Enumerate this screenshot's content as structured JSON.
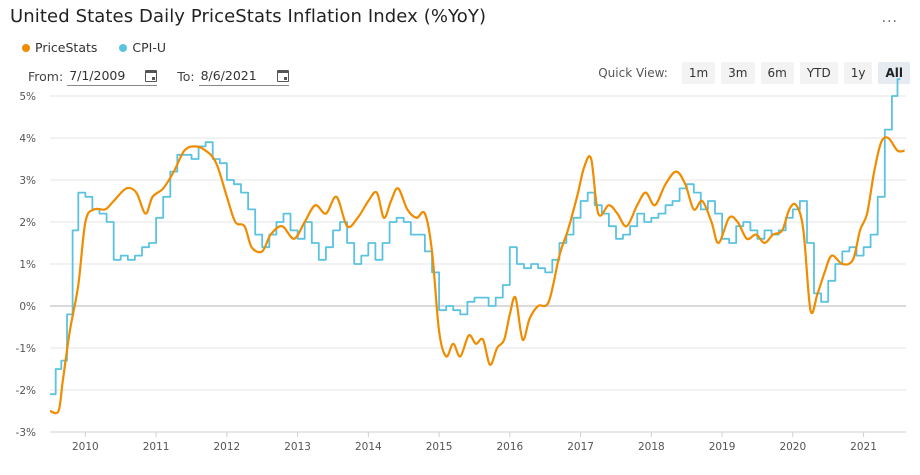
{
  "header": {
    "title": "United States Daily PriceStats Inflation Index (%YoY)",
    "menu_label": "..."
  },
  "legend": [
    {
      "name": "PriceStats",
      "color": "#f08c00"
    },
    {
      "name": "CPI-U",
      "color": "#5bc3e0"
    }
  ],
  "range": {
    "from_label": "From:",
    "from_value": "7/1/2009",
    "to_label": "To:",
    "to_value": "8/6/2021"
  },
  "quick_view": {
    "label": "Quick View:",
    "buttons": [
      "1m",
      "3m",
      "6m",
      "YTD",
      "1y",
      "All"
    ],
    "active": "All"
  },
  "chart_data": {
    "type": "line",
    "title": "United States Daily PriceStats Inflation Index (%YoY)",
    "xlabel": "",
    "ylabel": "",
    "xlim": [
      2009.5,
      2021.6
    ],
    "ylim": [
      -3,
      5
    ],
    "x_ticks": [
      "2010",
      "2011",
      "2012",
      "2013",
      "2014",
      "2015",
      "2016",
      "2017",
      "2018",
      "2019",
      "2020",
      "2021"
    ],
    "y_ticks": [
      "-3%",
      "-2%",
      "-1%",
      "0%",
      "1%",
      "2%",
      "3%",
      "4%",
      "5%"
    ],
    "grid": true,
    "legend_position": "top-left",
    "series": [
      {
        "name": "PriceStats",
        "color": "#f08c00",
        "style": "smooth",
        "points": [
          [
            2009.5,
            -2.5
          ],
          [
            2009.62,
            -2.5
          ],
          [
            2009.68,
            -1.8
          ],
          [
            2009.78,
            -0.6
          ],
          [
            2009.9,
            0.5
          ],
          [
            2010.0,
            2.0
          ],
          [
            2010.12,
            2.3
          ],
          [
            2010.28,
            2.3
          ],
          [
            2010.4,
            2.5
          ],
          [
            2010.58,
            2.8
          ],
          [
            2010.72,
            2.7
          ],
          [
            2010.85,
            2.2
          ],
          [
            2010.95,
            2.6
          ],
          [
            2011.1,
            2.8
          ],
          [
            2011.25,
            3.2
          ],
          [
            2011.4,
            3.7
          ],
          [
            2011.55,
            3.8
          ],
          [
            2011.7,
            3.7
          ],
          [
            2011.85,
            3.4
          ],
          [
            2012.0,
            2.6
          ],
          [
            2012.12,
            2.0
          ],
          [
            2012.25,
            1.9
          ],
          [
            2012.35,
            1.4
          ],
          [
            2012.5,
            1.3
          ],
          [
            2012.62,
            1.7
          ],
          [
            2012.78,
            1.9
          ],
          [
            2012.95,
            1.6
          ],
          [
            2013.1,
            2.0
          ],
          [
            2013.25,
            2.4
          ],
          [
            2013.4,
            2.2
          ],
          [
            2013.55,
            2.6
          ],
          [
            2013.7,
            1.9
          ],
          [
            2013.85,
            2.1
          ],
          [
            2014.0,
            2.5
          ],
          [
            2014.12,
            2.7
          ],
          [
            2014.22,
            2.1
          ],
          [
            2014.32,
            2.5
          ],
          [
            2014.42,
            2.8
          ],
          [
            2014.55,
            2.3
          ],
          [
            2014.68,
            2.1
          ],
          [
            2014.8,
            2.2
          ],
          [
            2014.9,
            1.3
          ],
          [
            2015.0,
            -0.6
          ],
          [
            2015.1,
            -1.2
          ],
          [
            2015.2,
            -0.9
          ],
          [
            2015.3,
            -1.2
          ],
          [
            2015.42,
            -0.7
          ],
          [
            2015.52,
            -0.9
          ],
          [
            2015.62,
            -0.8
          ],
          [
            2015.72,
            -1.4
          ],
          [
            2015.82,
            -1.0
          ],
          [
            2015.92,
            -0.8
          ],
          [
            2016.0,
            -0.2
          ],
          [
            2016.08,
            0.2
          ],
          [
            2016.18,
            -0.8
          ],
          [
            2016.28,
            -0.3
          ],
          [
            2016.4,
            0.0
          ],
          [
            2016.55,
            0.1
          ],
          [
            2016.7,
            1.2
          ],
          [
            2016.82,
            1.8
          ],
          [
            2016.95,
            2.6
          ],
          [
            2017.05,
            3.3
          ],
          [
            2017.15,
            3.5
          ],
          [
            2017.25,
            2.2
          ],
          [
            2017.4,
            2.4
          ],
          [
            2017.52,
            2.2
          ],
          [
            2017.65,
            1.9
          ],
          [
            2017.8,
            2.4
          ],
          [
            2017.92,
            2.7
          ],
          [
            2018.05,
            2.4
          ],
          [
            2018.2,
            2.9
          ],
          [
            2018.35,
            3.2
          ],
          [
            2018.48,
            2.9
          ],
          [
            2018.6,
            2.3
          ],
          [
            2018.72,
            2.5
          ],
          [
            2018.85,
            2.0
          ],
          [
            2018.95,
            1.5
          ],
          [
            2019.1,
            2.1
          ],
          [
            2019.22,
            2.0
          ],
          [
            2019.35,
            1.6
          ],
          [
            2019.48,
            1.7
          ],
          [
            2019.6,
            1.5
          ],
          [
            2019.72,
            1.7
          ],
          [
            2019.85,
            1.8
          ],
          [
            2019.95,
            2.3
          ],
          [
            2020.05,
            2.4
          ],
          [
            2020.15,
            1.8
          ],
          [
            2020.25,
            -0.1
          ],
          [
            2020.35,
            0.3
          ],
          [
            2020.45,
            0.8
          ],
          [
            2020.55,
            1.2
          ],
          [
            2020.7,
            1.0
          ],
          [
            2020.85,
            1.1
          ],
          [
            2020.95,
            1.8
          ],
          [
            2021.05,
            2.2
          ],
          [
            2021.15,
            3.2
          ],
          [
            2021.25,
            3.9
          ],
          [
            2021.35,
            4.0
          ],
          [
            2021.48,
            3.7
          ],
          [
            2021.58,
            3.7
          ]
        ]
      },
      {
        "name": "CPI-U",
        "color": "#5bc3e0",
        "style": "step",
        "points": [
          [
            2009.5,
            -2.1
          ],
          [
            2009.58,
            -1.5
          ],
          [
            2009.66,
            -1.3
          ],
          [
            2009.74,
            -0.2
          ],
          [
            2009.82,
            1.8
          ],
          [
            2009.9,
            2.7
          ],
          [
            2010.0,
            2.6
          ],
          [
            2010.1,
            2.3
          ],
          [
            2010.2,
            2.2
          ],
          [
            2010.3,
            2.0
          ],
          [
            2010.4,
            1.1
          ],
          [
            2010.5,
            1.2
          ],
          [
            2010.6,
            1.1
          ],
          [
            2010.7,
            1.2
          ],
          [
            2010.8,
            1.4
          ],
          [
            2010.9,
            1.5
          ],
          [
            2011.0,
            2.1
          ],
          [
            2011.1,
            2.6
          ],
          [
            2011.2,
            3.2
          ],
          [
            2011.3,
            3.6
          ],
          [
            2011.4,
            3.6
          ],
          [
            2011.5,
            3.5
          ],
          [
            2011.6,
            3.8
          ],
          [
            2011.7,
            3.9
          ],
          [
            2011.8,
            3.5
          ],
          [
            2011.9,
            3.4
          ],
          [
            2012.0,
            3.0
          ],
          [
            2012.1,
            2.9
          ],
          [
            2012.2,
            2.7
          ],
          [
            2012.3,
            2.3
          ],
          [
            2012.4,
            1.7
          ],
          [
            2012.5,
            1.4
          ],
          [
            2012.6,
            1.7
          ],
          [
            2012.7,
            2.0
          ],
          [
            2012.8,
            2.2
          ],
          [
            2012.9,
            1.8
          ],
          [
            2013.0,
            1.6
          ],
          [
            2013.1,
            2.0
          ],
          [
            2013.2,
            1.5
          ],
          [
            2013.3,
            1.1
          ],
          [
            2013.4,
            1.4
          ],
          [
            2013.5,
            1.8
          ],
          [
            2013.6,
            2.0
          ],
          [
            2013.7,
            1.5
          ],
          [
            2013.8,
            1.0
          ],
          [
            2013.9,
            1.2
          ],
          [
            2014.0,
            1.5
          ],
          [
            2014.1,
            1.1
          ],
          [
            2014.2,
            1.5
          ],
          [
            2014.3,
            2.0
          ],
          [
            2014.4,
            2.1
          ],
          [
            2014.5,
            2.0
          ],
          [
            2014.6,
            1.7
          ],
          [
            2014.7,
            1.7
          ],
          [
            2014.8,
            1.3
          ],
          [
            2014.9,
            0.8
          ],
          [
            2015.0,
            -0.1
          ],
          [
            2015.1,
            0.0
          ],
          [
            2015.2,
            -0.1
          ],
          [
            2015.3,
            -0.2
          ],
          [
            2015.4,
            0.1
          ],
          [
            2015.5,
            0.2
          ],
          [
            2015.6,
            0.2
          ],
          [
            2015.7,
            0.0
          ],
          [
            2015.8,
            0.2
          ],
          [
            2015.9,
            0.5
          ],
          [
            2016.0,
            1.4
          ],
          [
            2016.1,
            1.0
          ],
          [
            2016.2,
            0.9
          ],
          [
            2016.3,
            1.0
          ],
          [
            2016.4,
            0.9
          ],
          [
            2016.5,
            0.8
          ],
          [
            2016.6,
            1.1
          ],
          [
            2016.7,
            1.5
          ],
          [
            2016.8,
            1.7
          ],
          [
            2016.9,
            2.1
          ],
          [
            2017.0,
            2.5
          ],
          [
            2017.1,
            2.7
          ],
          [
            2017.2,
            2.4
          ],
          [
            2017.3,
            2.2
          ],
          [
            2017.4,
            1.9
          ],
          [
            2017.5,
            1.6
          ],
          [
            2017.6,
            1.7
          ],
          [
            2017.7,
            1.9
          ],
          [
            2017.8,
            2.2
          ],
          [
            2017.9,
            2.0
          ],
          [
            2018.0,
            2.1
          ],
          [
            2018.1,
            2.2
          ],
          [
            2018.2,
            2.4
          ],
          [
            2018.3,
            2.5
          ],
          [
            2018.4,
            2.8
          ],
          [
            2018.5,
            2.9
          ],
          [
            2018.6,
            2.7
          ],
          [
            2018.7,
            2.3
          ],
          [
            2018.8,
            2.5
          ],
          [
            2018.9,
            2.2
          ],
          [
            2019.0,
            1.6
          ],
          [
            2019.1,
            1.5
          ],
          [
            2019.2,
            1.9
          ],
          [
            2019.3,
            2.0
          ],
          [
            2019.4,
            1.8
          ],
          [
            2019.5,
            1.6
          ],
          [
            2019.6,
            1.8
          ],
          [
            2019.7,
            1.7
          ],
          [
            2019.8,
            1.8
          ],
          [
            2019.9,
            2.1
          ],
          [
            2020.0,
            2.3
          ],
          [
            2020.1,
            2.5
          ],
          [
            2020.2,
            1.5
          ],
          [
            2020.3,
            0.3
          ],
          [
            2020.4,
            0.1
          ],
          [
            2020.5,
            0.6
          ],
          [
            2020.6,
            1.0
          ],
          [
            2020.7,
            1.3
          ],
          [
            2020.8,
            1.4
          ],
          [
            2020.9,
            1.2
          ],
          [
            2021.0,
            1.4
          ],
          [
            2021.1,
            1.7
          ],
          [
            2021.2,
            2.6
          ],
          [
            2021.3,
            4.2
          ],
          [
            2021.4,
            5.0
          ],
          [
            2021.48,
            5.4
          ],
          [
            2021.52,
            5.4
          ]
        ]
      }
    ]
  }
}
